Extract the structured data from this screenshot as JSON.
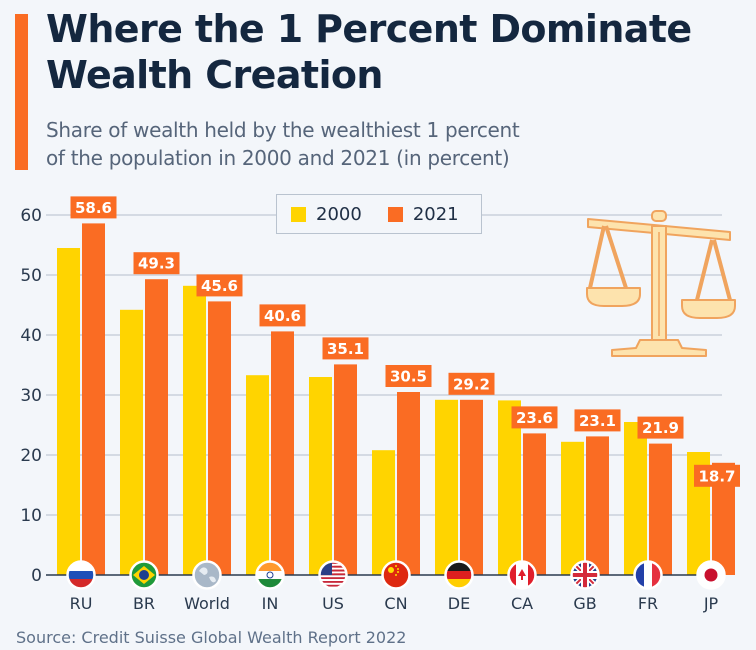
{
  "header": {
    "title_line1": "Where the 1 Percent Dominate",
    "title_line2": "Wealth Creation",
    "subtitle_line1": "Share of wealth held by the wealthiest 1 percent",
    "subtitle_line2": "of the population in 2000 and 2021 (in percent)"
  },
  "footer": {
    "source": "Source: Credit Suisse Global Wealth Report 2022"
  },
  "icons": {
    "illustration": "scales-of-justice-icon"
  },
  "colors": {
    "series_2000": "#ffd400",
    "series_2021": "#fa6c23",
    "accent": "#fa6c23",
    "title": "#14273f",
    "grid": "#c9d1db"
  },
  "chart_data": {
    "type": "bar",
    "title": "Where the 1 Percent Dominate Wealth Creation",
    "subtitle": "Share of wealth held by the wealthiest 1 percent of the population in 2000 and 2021 (in percent)",
    "xlabel": "",
    "ylabel": "",
    "ylim": [
      0,
      60
    ],
    "yticks": [
      0,
      10,
      20,
      30,
      40,
      50,
      60
    ],
    "grid": true,
    "legend_position": "top-center",
    "categories": [
      "RU",
      "BR",
      "World",
      "IN",
      "US",
      "CN",
      "DE",
      "CA",
      "GB",
      "FR",
      "JP"
    ],
    "flags": [
      "russia-flag-icon",
      "brazil-flag-icon",
      "globe-icon",
      "india-flag-icon",
      "usa-flag-icon",
      "china-flag-icon",
      "germany-flag-icon",
      "canada-flag-icon",
      "uk-flag-icon",
      "france-flag-icon",
      "japan-flag-icon"
    ],
    "series": [
      {
        "name": "2000",
        "values": [
          54.5,
          44.2,
          48.2,
          33.3,
          33.0,
          20.8,
          29.2,
          29.1,
          22.2,
          25.5,
          20.5
        ],
        "labeled": false
      },
      {
        "name": "2021",
        "values": [
          58.6,
          49.3,
          45.6,
          40.6,
          35.1,
          30.5,
          29.2,
          23.6,
          23.1,
          21.9,
          18.7
        ],
        "labeled": true
      }
    ],
    "data_labels": [
      "58.6",
      "49.3",
      "45.6",
      "40.6",
      "35.1",
      "30.5",
      "29.2",
      "23.6",
      "23.1",
      "21.9",
      "18.7"
    ]
  }
}
